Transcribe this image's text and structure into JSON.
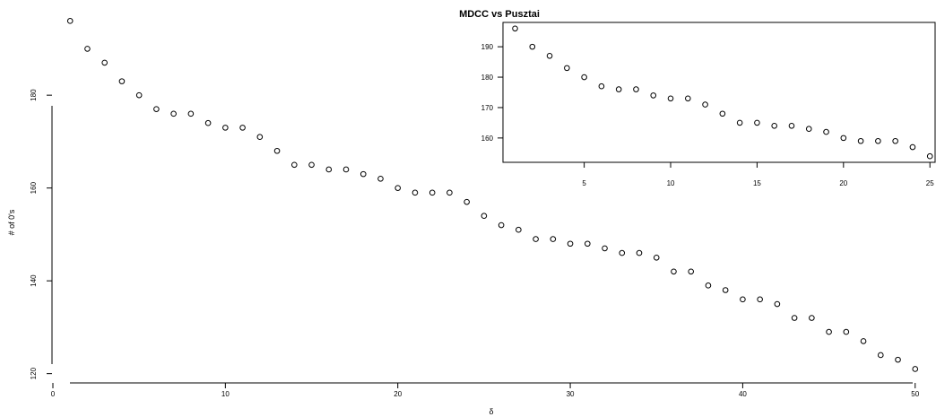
{
  "chart_data": [
    {
      "type": "scatter",
      "title": "MDCC vs Pusztai",
      "xlabel": "δ",
      "ylabel": "# of 0's",
      "xlim": [
        0,
        51
      ],
      "ylim": [
        118,
        198
      ],
      "xticks": [
        0,
        10,
        20,
        30,
        40,
        50
      ],
      "yticks": [
        120,
        140,
        160,
        180
      ],
      "grid": false,
      "series": [
        {
          "x": [
            1,
            2,
            3,
            4,
            5,
            6,
            7,
            8,
            9,
            10,
            11,
            12,
            13,
            14,
            15,
            16,
            17,
            18,
            19,
            20,
            21,
            22,
            23,
            24,
            25,
            26,
            27,
            28,
            29,
            30,
            31,
            32,
            33,
            34,
            35,
            36,
            37,
            38,
            39,
            40,
            41,
            42,
            43,
            44,
            45,
            46,
            47,
            48,
            49,
            50
          ],
          "y": [
            196,
            190,
            187,
            183,
            180,
            177,
            176,
            176,
            174,
            173,
            173,
            171,
            168,
            165,
            165,
            164,
            164,
            163,
            162,
            160,
            159,
            159,
            159,
            157,
            154,
            152,
            151,
            149,
            149,
            148,
            148,
            147,
            146,
            146,
            145,
            142,
            142,
            139,
            138,
            136,
            136,
            135,
            132,
            132,
            129,
            129,
            127,
            124,
            123,
            121
          ]
        }
      ]
    },
    {
      "type": "scatter",
      "role": "inset",
      "xlim": [
        0.3,
        25.3
      ],
      "ylim": [
        152,
        198
      ],
      "xticks": [
        5,
        10,
        15,
        20,
        25
      ],
      "yticks": [
        160,
        170,
        180,
        190
      ],
      "grid": false,
      "series": [
        {
          "x": [
            1,
            2,
            3,
            4,
            5,
            6,
            7,
            8,
            9,
            10,
            11,
            12,
            13,
            14,
            15,
            16,
            17,
            18,
            19,
            20,
            21,
            22,
            23,
            24,
            25
          ],
          "y": [
            196,
            190,
            187,
            183,
            180,
            177,
            176,
            176,
            174,
            173,
            173,
            171,
            168,
            165,
            165,
            164,
            164,
            163,
            162,
            160,
            159,
            159,
            159,
            157,
            154
          ]
        }
      ]
    }
  ]
}
